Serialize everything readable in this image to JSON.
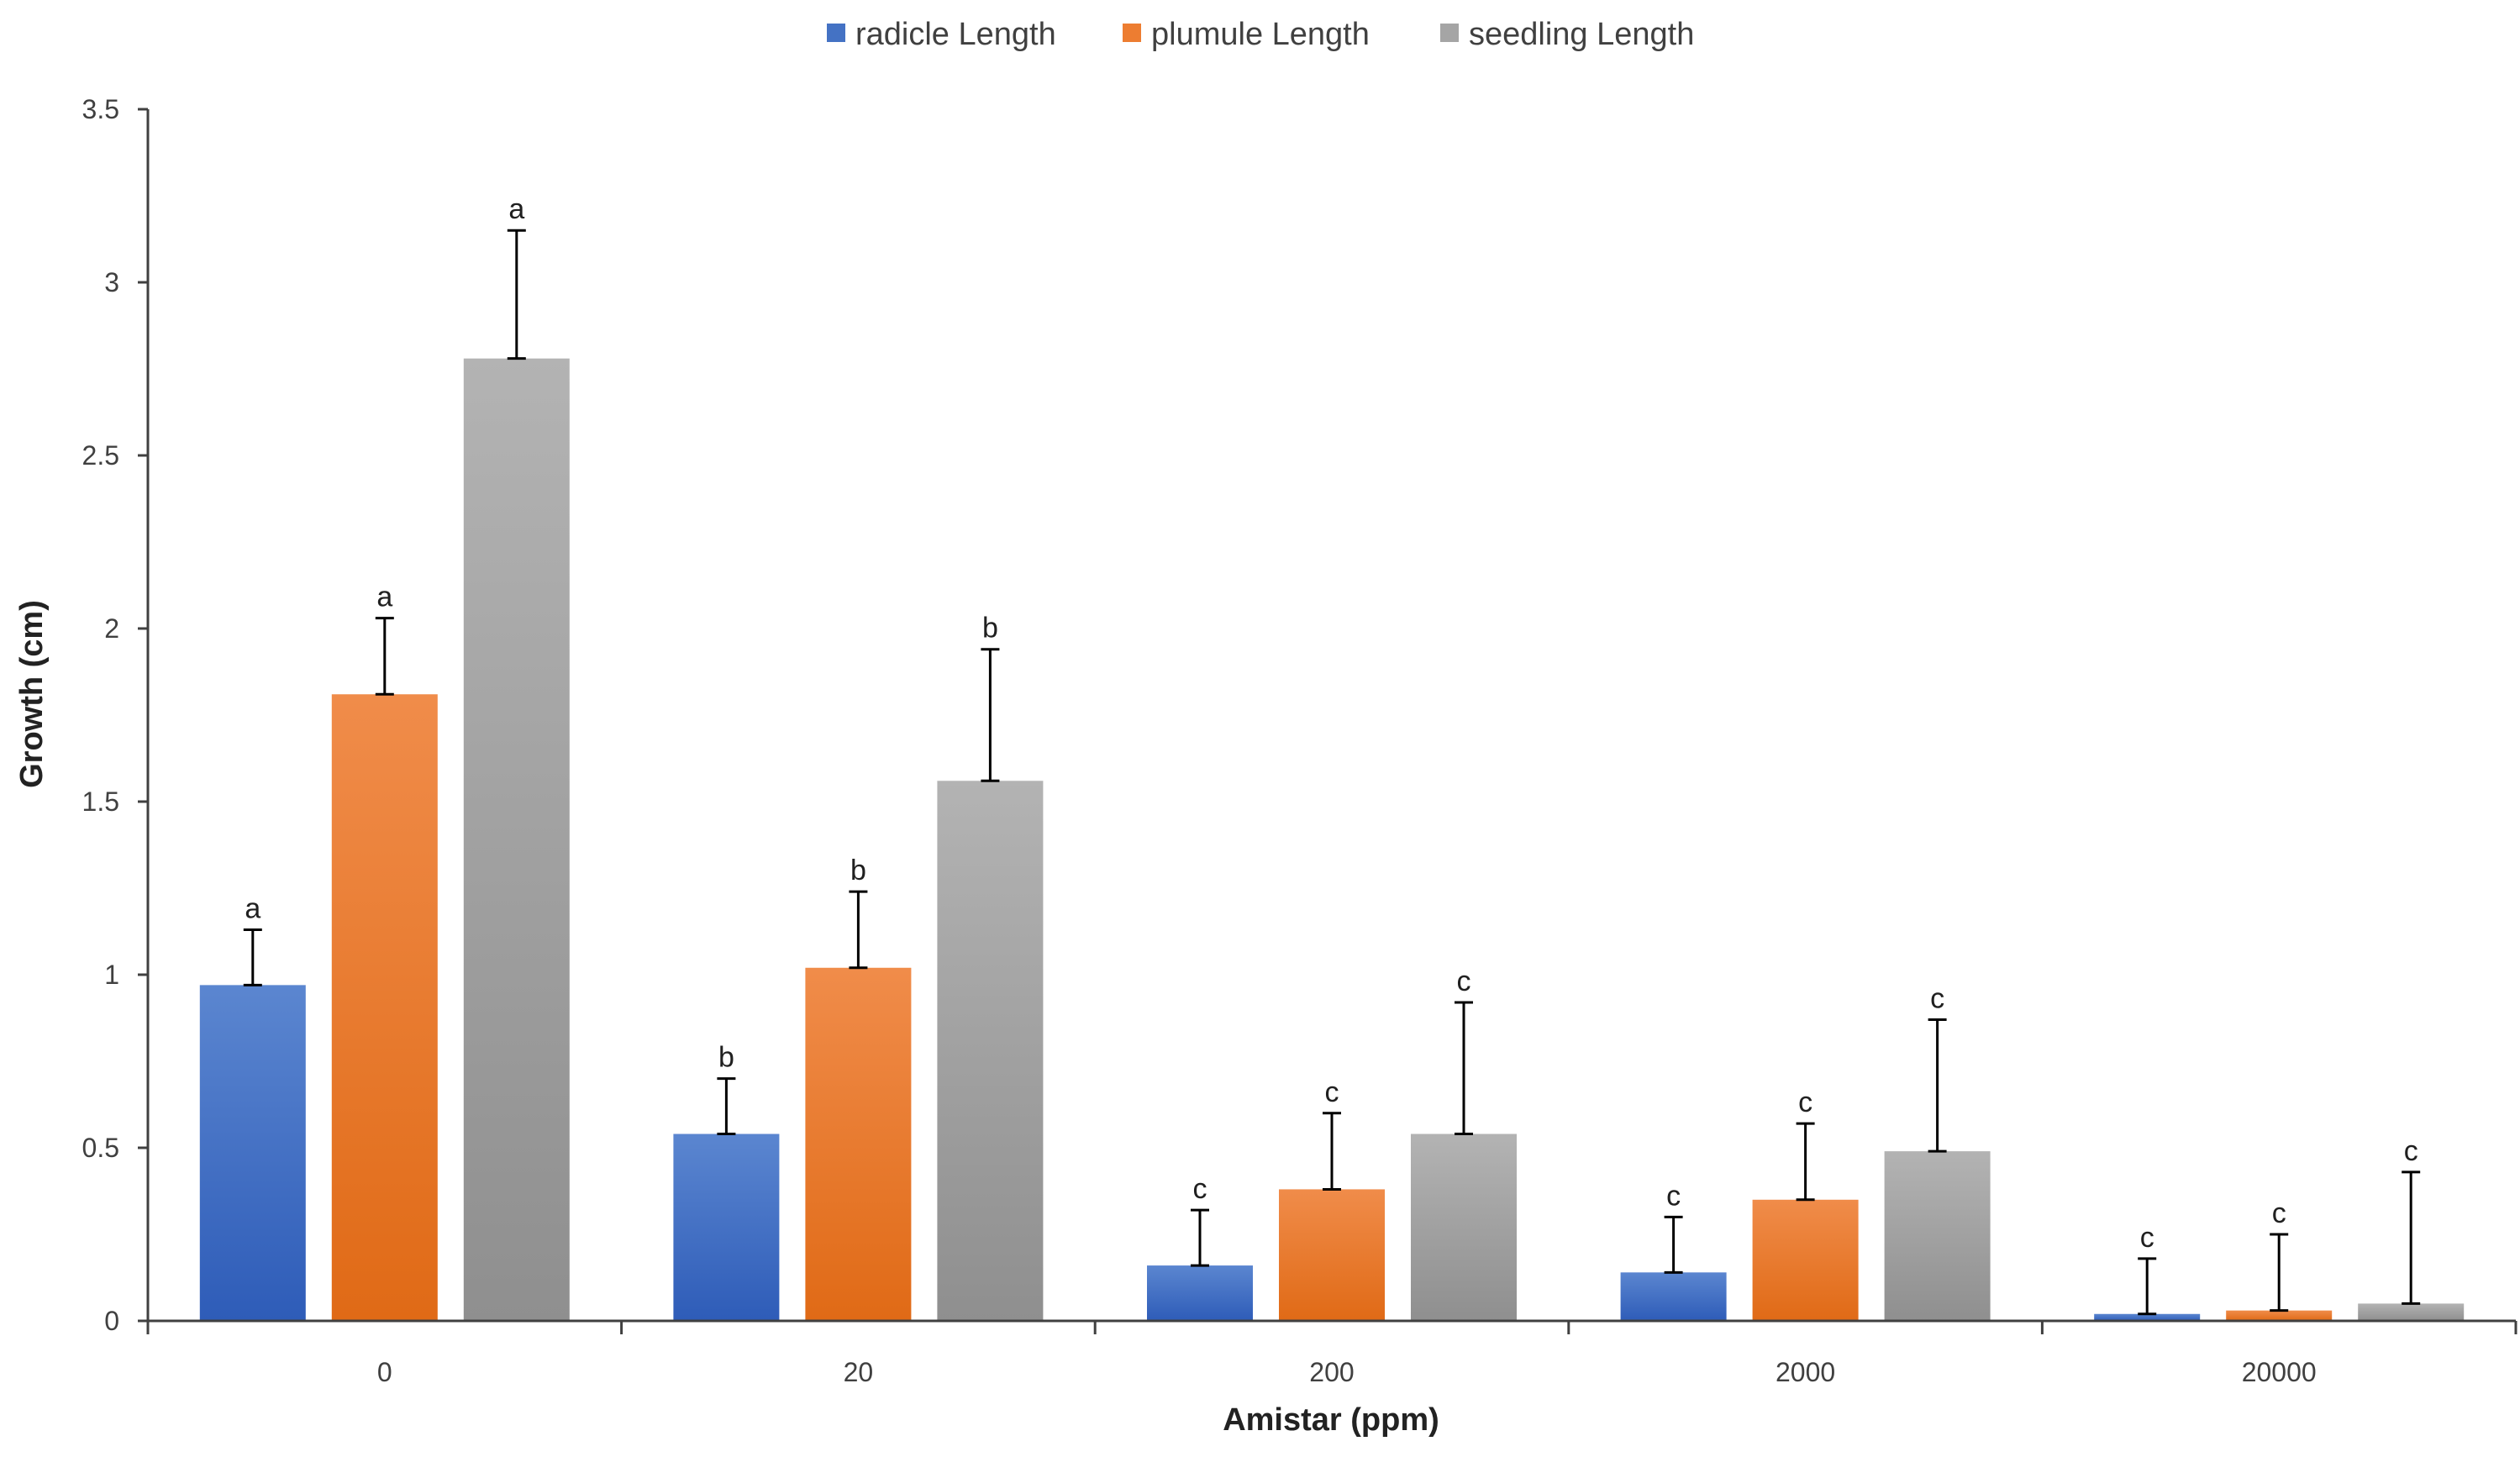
{
  "chart_data": {
    "type": "bar",
    "title": "",
    "xlabel": "Amistar (ppm)",
    "ylabel": "Growth (cm)",
    "ylim": [
      0,
      3.5
    ],
    "ytick_step": 0.5,
    "ytick_labels": [
      "0",
      "0.5",
      "1",
      "1.5",
      "2",
      "2.5",
      "3",
      "3.5"
    ],
    "categories": [
      "0",
      "20",
      "200",
      "2000",
      "20000"
    ],
    "legend_position": "top-center",
    "grid": false,
    "series": [
      {
        "name": "radicle Length",
        "color": "#4472C4",
        "values": [
          0.97,
          0.54,
          0.16,
          0.14,
          0.02
        ],
        "errors": [
          0.16,
          0.16,
          0.16,
          0.16,
          0.16
        ],
        "sig_labels": [
          "a",
          "b",
          "c",
          "c",
          "c"
        ]
      },
      {
        "name": "plumule Length",
        "color": "#ED7D31",
        "values": [
          1.81,
          1.02,
          0.38,
          0.35,
          0.03
        ],
        "errors": [
          0.22,
          0.22,
          0.22,
          0.22,
          0.22
        ],
        "sig_labels": [
          "a",
          "b",
          "c",
          "c",
          "c"
        ]
      },
      {
        "name": "seedling Length",
        "color": "#A5A5A5",
        "values": [
          2.78,
          1.56,
          0.54,
          0.49,
          0.05
        ],
        "errors": [
          0.37,
          0.38,
          0.38,
          0.38,
          0.38
        ],
        "sig_labels": [
          "a",
          "b",
          "c",
          "c",
          "c"
        ]
      }
    ]
  }
}
